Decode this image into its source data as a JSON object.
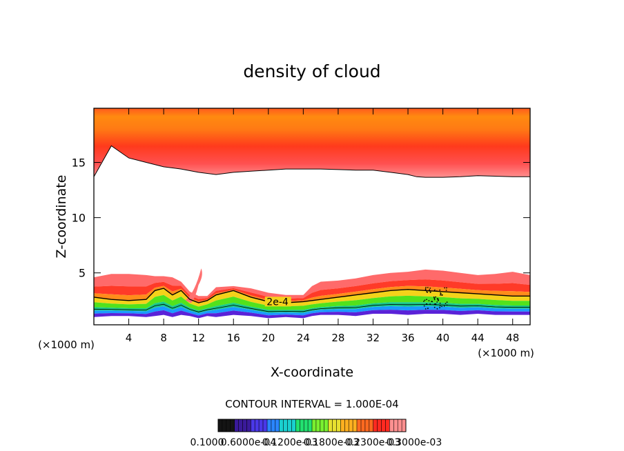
{
  "chart_data": {
    "type": "heatmap",
    "title": "density of cloud",
    "xlabel": "X-coordinate",
    "ylabel": "Z-coordinate",
    "x_unit": "(×1000 m)",
    "z_unit": "(×1000 m)",
    "xlim": [
      0,
      50
    ],
    "ylim": [
      0.3,
      19.9
    ],
    "x_ticks": [
      4,
      8,
      12,
      16,
      20,
      24,
      28,
      32,
      36,
      40,
      44,
      48
    ],
    "y_ticks": [
      5,
      10,
      15
    ],
    "contour_interval_text": "CONTOUR INTERVAL = 1.000E-04",
    "contour_label": "2e-4",
    "colorbar_labels": [
      "0.1000",
      "0.6000e-04",
      "0.1200e-03",
      "0.1800e-03",
      "0.2300e-03",
      "0.3000e-03"
    ],
    "upper_layer": {
      "x": [
        0,
        2,
        4,
        6,
        8,
        10,
        12,
        14,
        16,
        18,
        20,
        22,
        24,
        26,
        28,
        30,
        32,
        34,
        36,
        37,
        38,
        40,
        42,
        44,
        46,
        48,
        50
      ],
      "base_z": [
        13.7,
        16.5,
        15.4,
        15.0,
        14.6,
        14.4,
        14.1,
        13.9,
        14.1,
        14.2,
        14.3,
        14.4,
        14.4,
        14.4,
        14.35,
        14.3,
        14.3,
        14.1,
        13.9,
        13.7,
        13.65,
        13.65,
        13.7,
        13.8,
        13.75,
        13.7,
        13.7
      ]
    },
    "lower_layer": {
      "x": [
        0,
        2,
        4,
        6,
        7,
        8,
        9,
        10,
        11,
        12,
        13,
        14,
        16,
        18,
        20,
        22,
        24,
        25,
        26,
        28,
        30,
        32,
        34,
        36,
        38,
        40,
        42,
        44,
        46,
        48,
        50
      ],
      "top_z": [
        4.6,
        4.9,
        4.9,
        4.8,
        4.7,
        4.7,
        4.6,
        4.2,
        3.3,
        2.9,
        2.9,
        3.7,
        3.8,
        3.6,
        3.2,
        3.0,
        3.0,
        3.8,
        4.2,
        4.3,
        4.5,
        4.8,
        5.0,
        5.1,
        5.3,
        5.2,
        5.0,
        4.8,
        4.9,
        5.1,
        4.8
      ],
      "contour_2e4_z": [
        2.8,
        2.6,
        2.5,
        2.6,
        3.4,
        3.6,
        3.0,
        3.4,
        2.6,
        2.3,
        2.5,
        3.0,
        3.4,
        2.8,
        2.4,
        2.3,
        2.4,
        2.5,
        2.6,
        2.8,
        3.0,
        3.2,
        3.4,
        3.5,
        3.4,
        3.3,
        3.2,
        3.1,
        3.0,
        2.9,
        2.9
      ],
      "bottom_z": [
        1.0,
        1.1,
        1.1,
        1.0,
        1.1,
        1.2,
        1.0,
        1.2,
        1.1,
        0.9,
        1.1,
        1.0,
        1.2,
        1.1,
        0.9,
        1.0,
        0.9,
        1.1,
        1.2,
        1.2,
        1.1,
        1.3,
        1.3,
        1.2,
        1.3,
        1.3,
        1.2,
        1.3,
        1.2,
        1.2,
        1.2
      ],
      "tongue": {
        "x": [
          10.5,
          12.3
        ],
        "z": [
          2.9,
          5.4
        ]
      }
    }
  }
}
